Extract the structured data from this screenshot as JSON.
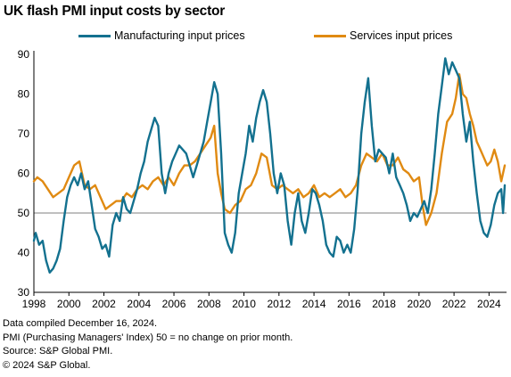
{
  "header": {
    "title": "UK flash PMI input costs by sector"
  },
  "colors": {
    "manufacturing": "#13718f",
    "services": "#e08a12",
    "reference_line": "#7f7f7f",
    "axis": "#000000"
  },
  "footer": {
    "lines": [
      "Data compiled December 16, 2024.",
      "PMI  (Purchasing Managers' Index) 50 = no change on prior month.",
      "Source: S&P Global PMI.",
      "© 2024 S&P Global."
    ]
  },
  "chart_data": {
    "type": "line",
    "title": "UK flash PMI input costs by sector",
    "xlim": [
      1998.0,
      2025.0
    ],
    "ylim": [
      30,
      90
    ],
    "y_ticks": [
      30,
      40,
      50,
      60,
      70,
      80,
      90
    ],
    "x_ticks": [
      1998,
      2000,
      2002,
      2004,
      2006,
      2008,
      2010,
      2012,
      2014,
      2016,
      2018,
      2020,
      2022,
      2024
    ],
    "reference_line": 50,
    "grid": false,
    "legend": "top",
    "series": [
      {
        "name": "Manufacturing input prices",
        "color": "#13718f",
        "points": [
          [
            1998.0,
            43
          ],
          [
            1998.1,
            45
          ],
          [
            1998.3,
            42
          ],
          [
            1998.5,
            43
          ],
          [
            1998.7,
            38
          ],
          [
            1998.9,
            35
          ],
          [
            1999.1,
            36
          ],
          [
            1999.3,
            38
          ],
          [
            1999.5,
            41
          ],
          [
            1999.7,
            48
          ],
          [
            1999.9,
            54
          ],
          [
            2000.1,
            57
          ],
          [
            2000.3,
            59
          ],
          [
            2000.5,
            57
          ],
          [
            2000.7,
            60
          ],
          [
            2000.9,
            56
          ],
          [
            2001.1,
            58
          ],
          [
            2001.3,
            52
          ],
          [
            2001.5,
            46
          ],
          [
            2001.7,
            44
          ],
          [
            2001.9,
            41
          ],
          [
            2002.1,
            42
          ],
          [
            2002.3,
            39
          ],
          [
            2002.5,
            47
          ],
          [
            2002.7,
            50
          ],
          [
            2002.9,
            48
          ],
          [
            2003.1,
            54
          ],
          [
            2003.3,
            51
          ],
          [
            2003.5,
            50
          ],
          [
            2003.7,
            53
          ],
          [
            2003.9,
            56
          ],
          [
            2004.1,
            60
          ],
          [
            2004.3,
            63
          ],
          [
            2004.5,
            68
          ],
          [
            2004.7,
            71
          ],
          [
            2004.9,
            74
          ],
          [
            2005.1,
            72
          ],
          [
            2005.3,
            60
          ],
          [
            2005.5,
            55
          ],
          [
            2005.7,
            60
          ],
          [
            2005.9,
            63
          ],
          [
            2006.1,
            65
          ],
          [
            2006.3,
            67
          ],
          [
            2006.5,
            66
          ],
          [
            2006.7,
            65
          ],
          [
            2006.9,
            62
          ],
          [
            2007.1,
            59
          ],
          [
            2007.3,
            62
          ],
          [
            2007.5,
            65
          ],
          [
            2007.7,
            68
          ],
          [
            2007.9,
            73
          ],
          [
            2008.1,
            78
          ],
          [
            2008.3,
            83
          ],
          [
            2008.5,
            80
          ],
          [
            2008.7,
            65
          ],
          [
            2008.9,
            45
          ],
          [
            2009.1,
            42
          ],
          [
            2009.3,
            40
          ],
          [
            2009.5,
            45
          ],
          [
            2009.7,
            55
          ],
          [
            2009.9,
            60
          ],
          [
            2010.1,
            65
          ],
          [
            2010.3,
            72
          ],
          [
            2010.5,
            68
          ],
          [
            2010.7,
            74
          ],
          [
            2010.9,
            78
          ],
          [
            2011.1,
            81
          ],
          [
            2011.3,
            78
          ],
          [
            2011.5,
            70
          ],
          [
            2011.7,
            60
          ],
          [
            2011.9,
            55
          ],
          [
            2012.1,
            60
          ],
          [
            2012.3,
            57
          ],
          [
            2012.5,
            48
          ],
          [
            2012.7,
            42
          ],
          [
            2012.9,
            50
          ],
          [
            2013.1,
            55
          ],
          [
            2013.3,
            48
          ],
          [
            2013.5,
            45
          ],
          [
            2013.7,
            50
          ],
          [
            2013.9,
            56
          ],
          [
            2014.1,
            55
          ],
          [
            2014.3,
            52
          ],
          [
            2014.5,
            48
          ],
          [
            2014.7,
            42
          ],
          [
            2014.9,
            40
          ],
          [
            2015.1,
            39
          ],
          [
            2015.3,
            44
          ],
          [
            2015.5,
            43
          ],
          [
            2015.7,
            40
          ],
          [
            2015.9,
            42
          ],
          [
            2016.1,
            40
          ],
          [
            2016.3,
            46
          ],
          [
            2016.5,
            56
          ],
          [
            2016.7,
            70
          ],
          [
            2016.9,
            78
          ],
          [
            2017.1,
            84
          ],
          [
            2017.3,
            72
          ],
          [
            2017.5,
            63
          ],
          [
            2017.7,
            66
          ],
          [
            2017.9,
            65
          ],
          [
            2018.1,
            64
          ],
          [
            2018.3,
            60
          ],
          [
            2018.5,
            65
          ],
          [
            2018.7,
            59
          ],
          [
            2018.9,
            57
          ],
          [
            2019.1,
            55
          ],
          [
            2019.3,
            52
          ],
          [
            2019.5,
            48
          ],
          [
            2019.7,
            50
          ],
          [
            2019.9,
            49
          ],
          [
            2020.1,
            51
          ],
          [
            2020.3,
            53
          ],
          [
            2020.5,
            50
          ],
          [
            2020.7,
            56
          ],
          [
            2020.9,
            65
          ],
          [
            2021.1,
            75
          ],
          [
            2021.3,
            82
          ],
          [
            2021.5,
            89
          ],
          [
            2021.7,
            85
          ],
          [
            2021.9,
            88
          ],
          [
            2022.1,
            86
          ],
          [
            2022.3,
            84
          ],
          [
            2022.5,
            75
          ],
          [
            2022.7,
            68
          ],
          [
            2022.9,
            73
          ],
          [
            2023.1,
            63
          ],
          [
            2023.3,
            55
          ],
          [
            2023.5,
            48
          ],
          [
            2023.7,
            45
          ],
          [
            2023.9,
            44
          ],
          [
            2024.1,
            47
          ],
          [
            2024.3,
            52
          ],
          [
            2024.5,
            55
          ],
          [
            2024.7,
            56
          ],
          [
            2024.8,
            50
          ],
          [
            2024.9,
            57
          ]
        ]
      },
      {
        "name": "Services input prices",
        "color": "#e08a12",
        "points": [
          [
            1998.0,
            58
          ],
          [
            1998.2,
            59
          ],
          [
            1998.5,
            58
          ],
          [
            1998.8,
            56
          ],
          [
            1999.1,
            54
          ],
          [
            1999.4,
            55
          ],
          [
            1999.7,
            56
          ],
          [
            2000.0,
            59
          ],
          [
            2000.3,
            62
          ],
          [
            2000.6,
            63
          ],
          [
            2000.9,
            57
          ],
          [
            2001.2,
            56
          ],
          [
            2001.5,
            57
          ],
          [
            2001.8,
            54
          ],
          [
            2002.1,
            51
          ],
          [
            2002.4,
            52
          ],
          [
            2002.7,
            53
          ],
          [
            2003.0,
            53
          ],
          [
            2003.3,
            55
          ],
          [
            2003.6,
            54
          ],
          [
            2003.9,
            56
          ],
          [
            2004.2,
            57
          ],
          [
            2004.5,
            56
          ],
          [
            2004.8,
            58
          ],
          [
            2005.1,
            59
          ],
          [
            2005.4,
            57
          ],
          [
            2005.7,
            59
          ],
          [
            2006.0,
            57
          ],
          [
            2006.3,
            60
          ],
          [
            2006.6,
            62
          ],
          [
            2006.9,
            62
          ],
          [
            2007.2,
            63
          ],
          [
            2007.5,
            65
          ],
          [
            2007.8,
            67
          ],
          [
            2008.1,
            69
          ],
          [
            2008.3,
            72
          ],
          [
            2008.5,
            60
          ],
          [
            2008.7,
            55
          ],
          [
            2008.9,
            51
          ],
          [
            2009.2,
            50
          ],
          [
            2009.5,
            52
          ],
          [
            2009.8,
            53
          ],
          [
            2010.1,
            56
          ],
          [
            2010.4,
            57
          ],
          [
            2010.7,
            60
          ],
          [
            2011.0,
            65
          ],
          [
            2011.3,
            64
          ],
          [
            2011.6,
            57
          ],
          [
            2011.9,
            56
          ],
          [
            2012.2,
            57
          ],
          [
            2012.5,
            56
          ],
          [
            2012.8,
            55
          ],
          [
            2013.1,
            56
          ],
          [
            2013.4,
            54
          ],
          [
            2013.7,
            55
          ],
          [
            2014.0,
            57
          ],
          [
            2014.3,
            54
          ],
          [
            2014.6,
            55
          ],
          [
            2014.9,
            54
          ],
          [
            2015.2,
            55
          ],
          [
            2015.5,
            56
          ],
          [
            2015.8,
            54
          ],
          [
            2016.1,
            55
          ],
          [
            2016.4,
            57
          ],
          [
            2016.7,
            62
          ],
          [
            2017.0,
            65
          ],
          [
            2017.3,
            64
          ],
          [
            2017.6,
            63
          ],
          [
            2017.9,
            65
          ],
          [
            2018.2,
            62
          ],
          [
            2018.5,
            62
          ],
          [
            2018.8,
            64
          ],
          [
            2019.1,
            61
          ],
          [
            2019.4,
            60
          ],
          [
            2019.7,
            58
          ],
          [
            2020.0,
            59
          ],
          [
            2020.2,
            52
          ],
          [
            2020.4,
            47
          ],
          [
            2020.7,
            50
          ],
          [
            2021.0,
            55
          ],
          [
            2021.3,
            65
          ],
          [
            2021.6,
            73
          ],
          [
            2021.9,
            75
          ],
          [
            2022.1,
            79
          ],
          [
            2022.3,
            85
          ],
          [
            2022.5,
            80
          ],
          [
            2022.7,
            79
          ],
          [
            2022.9,
            75
          ],
          [
            2023.1,
            72
          ],
          [
            2023.3,
            68
          ],
          [
            2023.5,
            66
          ],
          [
            2023.7,
            64
          ],
          [
            2023.9,
            62
          ],
          [
            2024.1,
            63
          ],
          [
            2024.3,
            66
          ],
          [
            2024.5,
            63
          ],
          [
            2024.7,
            58
          ],
          [
            2024.9,
            62
          ]
        ]
      }
    ]
  }
}
